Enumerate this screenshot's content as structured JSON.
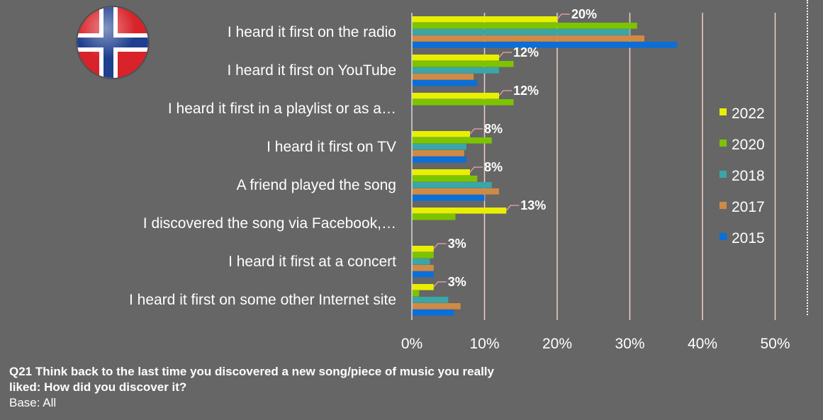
{
  "colors": {
    "background": "#666666",
    "gridline": "#f2cfc8",
    "leader": "#f4a6a6",
    "series": [
      "#e8f000",
      "#7cc400",
      "#3aa6a8",
      "#d08a45",
      "#0a6fd8"
    ]
  },
  "chart_data": {
    "type": "bar",
    "orientation": "horizontal",
    "categories": [
      "I heard it first on the radio",
      "I heard it first on YouTube",
      "I heard it first in a playlist or as a…",
      "I heard it first on TV",
      "A friend played the song",
      "I discovered the song via Facebook,…",
      "I heard it first at a concert",
      "I heard it first on some other Internet site"
    ],
    "series": [
      {
        "name": "2022",
        "values": [
          20,
          12,
          12,
          8,
          8,
          13,
          3,
          3
        ]
      },
      {
        "name": "2020",
        "values": [
          31,
          14,
          14,
          11,
          9,
          6,
          3,
          1
        ]
      },
      {
        "name": "2018",
        "values": [
          30,
          12,
          null,
          7.5,
          11,
          null,
          2.5,
          5
        ]
      },
      {
        "name": "2017",
        "values": [
          32,
          8.5,
          null,
          7.2,
          12,
          null,
          3,
          6.7
        ]
      },
      {
        "name": "2015",
        "values": [
          36.5,
          9,
          null,
          7.5,
          10,
          null,
          3,
          5.8
        ]
      }
    ],
    "data_labels": [
      "20%",
      "12%",
      "12%",
      "8%",
      "8%",
      "13%",
      "3%",
      "3%"
    ],
    "xlim": [
      0,
      50
    ],
    "x_ticks": [
      "0%",
      "10%",
      "20%",
      "30%",
      "40%",
      "50%"
    ],
    "grid": true,
    "legend_position": "right"
  },
  "footer": {
    "question": "Q21 Think back to the last time you discovered a new song/piece of music you really liked: How did you discover it?",
    "base": "Base: All"
  }
}
